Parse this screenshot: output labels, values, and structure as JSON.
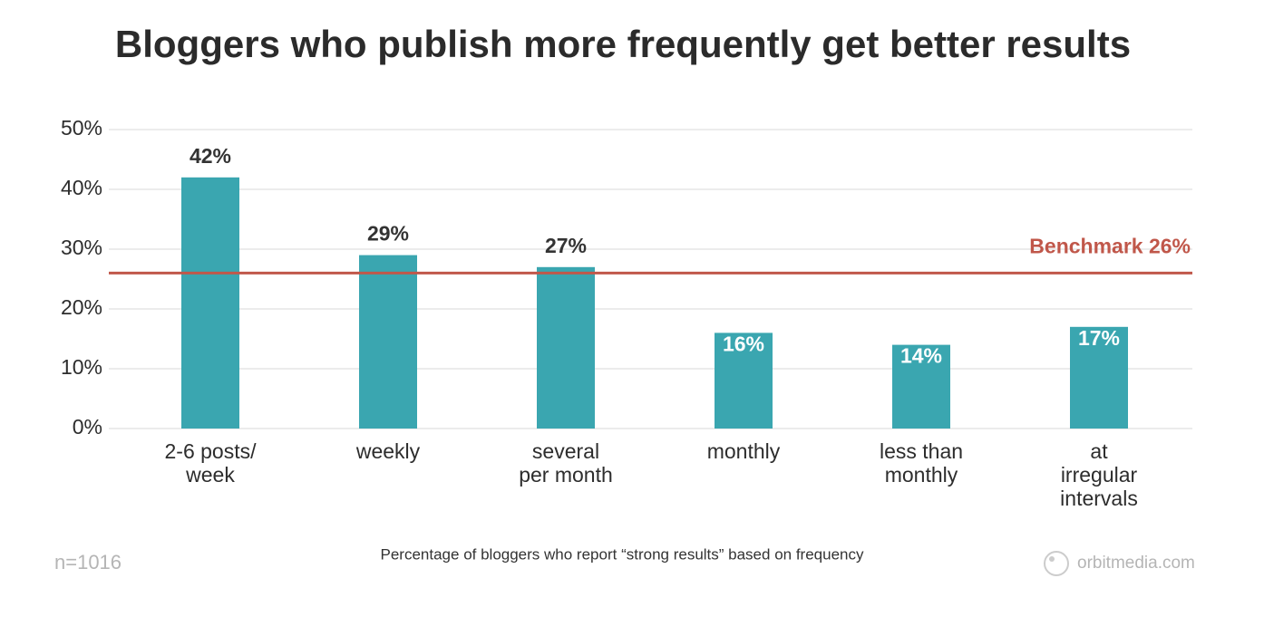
{
  "chart_data": {
    "type": "bar",
    "title": "Bloggers who publish more frequently get better results",
    "categories": [
      "2-6 posts/\nweek",
      "weekly",
      "several\nper month",
      "monthly",
      "less than\nmonthly",
      "at\nirregular\nintervals"
    ],
    "values": [
      42,
      29,
      27,
      16,
      14,
      17
    ],
    "value_labels": [
      "42%",
      "29%",
      "27%",
      "16%",
      "14%",
      "17%"
    ],
    "color": "#3aa6b0",
    "ylim": [
      0,
      50
    ],
    "yticks": [
      {
        "value": 0,
        "label": "0%"
      },
      {
        "value": 10,
        "label": "10%"
      },
      {
        "value": 20,
        "label": "20%"
      },
      {
        "value": 30,
        "label": "30%"
      },
      {
        "value": 40,
        "label": "40%"
      },
      {
        "value": 50,
        "label": "50%"
      }
    ],
    "grid": true,
    "benchmark": {
      "value": 26,
      "label": "Benchmark 26%",
      "color": "#c0574a"
    },
    "sample_size": "n=1016",
    "caption": "Percentage of bloggers who report “strong results” based on frequency",
    "source": "orbitmedia.com"
  }
}
